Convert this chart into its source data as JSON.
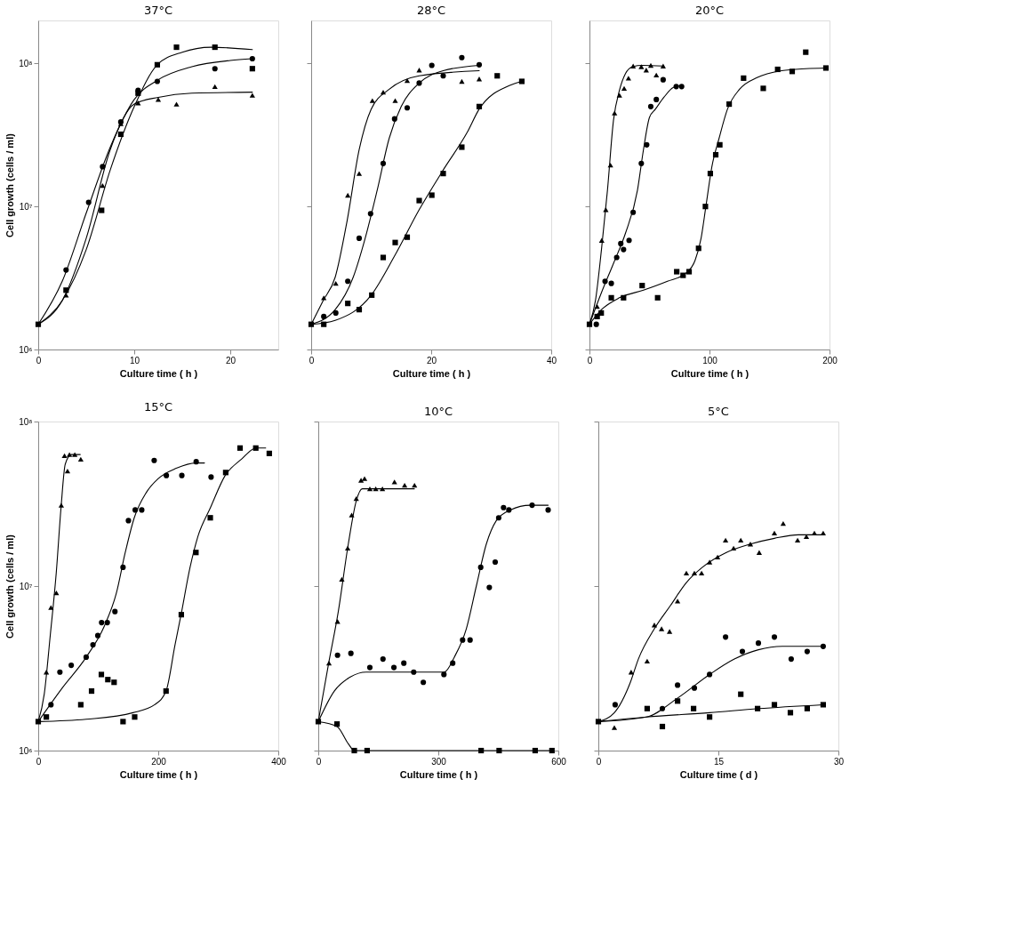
{
  "chart_data": [
    {
      "type": "scatter",
      "title": "37°C",
      "xlabel": "Culture time ( h )",
      "ylabel": "Cell growth  (cells / ml)",
      "log": true,
      "xlim": [
        0,
        25
      ],
      "xticks": [
        0,
        10,
        20
      ],
      "ylim": [
        1000000.0,
        200000000.0
      ],
      "yticks": [
        {
          "value": 1000000.0,
          "label": "10⁶"
        },
        {
          "value": 10000000.0,
          "label": "10⁷"
        },
        {
          "value": 100000000.0,
          "label": "10⁸"
        }
      ],
      "series": [
        {
          "type": "scatter",
          "marker": "square",
          "color": "#000000",
          "x": [
            0,
            2.9,
            6.6,
            8.6,
            10.4,
            12.4,
            14.4,
            18.4,
            22.3
          ],
          "values": [
            1500000.0,
            2600000.0,
            9400000.0,
            32000000.0,
            62000000.0,
            98000000.0,
            130000000.0,
            130000000.0,
            92000000.0
          ]
        },
        {
          "type": "scatter",
          "marker": "circle",
          "color": "#000000",
          "x": [
            2.9,
            5.25,
            6.7,
            8.6,
            10.4,
            12.4,
            18.4,
            22.3
          ],
          "values": [
            3600000.0,
            10700000.0,
            19000000.0,
            39000000.0,
            65000000.0,
            75000000.0,
            92000000.0,
            108000000.0
          ]
        },
        {
          "type": "scatter",
          "marker": "triangle",
          "color": "#000000",
          "x": [
            2.9,
            6.7,
            8.6,
            10.4,
            12.5,
            14.4,
            18.4,
            22.3
          ],
          "values": [
            2400000.0,
            14000000.0,
            38000000.0,
            53000000.0,
            56000000.0,
            52000000.0,
            69000000.0,
            60000000.0
          ]
        },
        {
          "type": "line",
          "marker": "none",
          "color": "#000000",
          "x": [
            0,
            2.5,
            5,
            7.5,
            10,
            12.4,
            15,
            18,
            22.3
          ],
          "values": [
            1500000.0,
            2200000.0,
            5000000.0,
            18000000.0,
            50000000.0,
            98000000.0,
            120000000.0,
            130000000.0,
            125000000.0
          ]
        },
        {
          "type": "line",
          "marker": "none",
          "color": "#000000",
          "x": [
            0,
            2.5,
            5,
            7.5,
            10,
            12.5,
            16,
            20,
            22.3
          ],
          "values": [
            1500000.0,
            3000000.0,
            9000000.0,
            26000000.0,
            56000000.0,
            77000000.0,
            95000000.0,
            105000000.0,
            108000000.0
          ]
        },
        {
          "type": "line",
          "marker": "none",
          "color": "#000000",
          "x": [
            0,
            2.5,
            5,
            7.5,
            10,
            12.5,
            16,
            22.3
          ],
          "values": [
            1500000.0,
            2200000.0,
            6000000.0,
            25000000.0,
            52000000.0,
            58000000.0,
            62000000.0,
            63000000.0
          ]
        }
      ]
    },
    {
      "type": "scatter",
      "title": "28°C",
      "xlabel": "Culture time ( h )",
      "log": true,
      "tick_labels": "x",
      "xlim": [
        0,
        40
      ],
      "xticks": [
        0,
        20,
        40
      ],
      "ylim": [
        1000000.0,
        200000000.0
      ],
      "yticks": [
        {
          "value": 1000000.0,
          "label": null
        },
        {
          "value": 10000000.0,
          "label": null
        },
        {
          "value": 100000000.0,
          "label": null
        }
      ],
      "series": [
        {
          "type": "scatter",
          "marker": "triangle",
          "color": "#000000",
          "x": [
            2.1,
            4.1,
            6.1,
            8.0,
            10.2,
            12.0,
            14.0,
            16.0,
            18.0,
            20.1,
            25.1,
            28.0
          ],
          "values": [
            2300000.0,
            2900000.0,
            12000000.0,
            17000000.0,
            55000000.0,
            63000000.0,
            55000000.0,
            76000000.0,
            90000000.0,
            null,
            75000000.0,
            78000000.0
          ]
        },
        {
          "type": "scatter",
          "marker": "circle",
          "color": "#000000",
          "x": [
            2.1,
            4.1,
            6.1,
            8.0,
            9.9,
            12.0,
            13.9,
            16.0,
            18.0,
            20.1,
            22.0,
            25.1,
            28.0
          ],
          "values": [
            1700000.0,
            1800000.0,
            3000000.0,
            6000000.0,
            8900000.0,
            20000000.0,
            41000000.0,
            49000000.0,
            73000000.0,
            97000000.0,
            82000000.0,
            110000000.0,
            98000000.0
          ]
        },
        {
          "type": "scatter",
          "marker": "square",
          "color": "#000000",
          "x": [
            0,
            2.1,
            6.1,
            8.0,
            10.1,
            12.0,
            14.0,
            16.0,
            18.0,
            20.1,
            22.0,
            25.1,
            28.0,
            31.0,
            35.1
          ],
          "values": [
            1500000.0,
            1500000.0,
            2100000.0,
            1900000.0,
            2400000.0,
            4400000.0,
            5600000.0,
            6100000.0,
            11000000.0,
            12000000.0,
            17000000.0,
            26000000.0,
            50000000.0,
            82000000.0,
            75000000.0
          ]
        },
        {
          "type": "line",
          "marker": "none",
          "color": "#000000",
          "x": [
            0,
            2,
            4,
            6,
            8,
            10,
            13,
            18,
            28
          ],
          "values": [
            1500000.0,
            2200000.0,
            3200000.0,
            8000000.0,
            25000000.0,
            48000000.0,
            66000000.0,
            82000000.0,
            89000000.0
          ]
        },
        {
          "type": "line",
          "marker": "none",
          "color": "#000000",
          "x": [
            0,
            4,
            7,
            9,
            11,
            13,
            15,
            18,
            22,
            28
          ],
          "values": [
            1500000.0,
            1900000.0,
            3200000.0,
            6000000.0,
            13000000.0,
            30000000.0,
            50000000.0,
            73000000.0,
            89000000.0,
            97000000.0
          ]
        },
        {
          "type": "line",
          "marker": "none",
          "color": "#000000",
          "x": [
            0,
            4,
            10,
            14,
            18,
            22,
            26,
            28,
            33,
            35.1
          ],
          "values": [
            1500000.0,
            1600000.0,
            2400000.0,
            4600000.0,
            9500000.0,
            18000000.0,
            33000000.0,
            48000000.0,
            70000000.0,
            75000000.0
          ]
        }
      ]
    },
    {
      "type": "scatter",
      "title": "20°C",
      "xlabel": "Culture time ( h )",
      "log": true,
      "tick_labels": "x",
      "xlim": [
        0,
        200
      ],
      "xticks": [
        0,
        100,
        200
      ],
      "ylim": [
        1000000.0,
        200000000.0
      ],
      "yticks": [
        {
          "value": 1000000.0,
          "label": null
        },
        {
          "value": 10000000.0,
          "label": null
        },
        {
          "value": 100000000.0,
          "label": null
        }
      ],
      "series": [
        {
          "type": "scatter",
          "marker": "triangle",
          "color": "#000000",
          "x": [
            6.4,
            10.2,
            13.6,
            17.5,
            20.9,
            25,
            28.9,
            32.5,
            36.4,
            43.2,
            47.3,
            51.1,
            55.7,
            61.4
          ],
          "values": [
            2000000.0,
            5800000.0,
            9500000.0,
            19500000.0,
            45000000.0,
            60000000.0,
            67000000.0,
            79000000.0,
            96000000.0,
            95000000.0,
            90000000.0,
            97000000.0,
            83000000.0,
            96000000.0
          ]
        },
        {
          "type": "scatter",
          "marker": "circle",
          "color": "#000000",
          "x": [
            5.7,
            13,
            18.2,
            22.7,
            26.1,
            28.4,
            33,
            36.4,
            43.2,
            47.7,
            51.1,
            55.7,
            61.4,
            72.3,
            76.8
          ],
          "values": [
            1500000.0,
            3000000.0,
            2900000.0,
            4400000.0,
            5500000.0,
            5000000.0,
            5800000.0,
            9100000.0,
            20000000.0,
            27000000.0,
            50000000.0,
            56000000.0,
            77000000.0,
            69000000.0,
            69000000.0
          ]
        },
        {
          "type": "scatter",
          "marker": "square",
          "color": "#000000",
          "x": [
            0,
            6.4,
            9.8,
            18.2,
            28.4,
            43.9,
            56.8,
            72.7,
            78,
            83,
            90.9,
            96.6,
            100.7,
            105.2,
            108.6,
            116.4,
            128.4,
            144.8,
            156.8,
            168.9,
            180.2,
            197
          ],
          "values": [
            1500000.0,
            1700000.0,
            1800000.0,
            2300000.0,
            2300000.0,
            2800000.0,
            2300000.0,
            3500000.0,
            3300000.0,
            3500000.0,
            5100000.0,
            10000000.0,
            17000000.0,
            23000000.0,
            27000000.0,
            52000000.0,
            79000000.0,
            67000000.0,
            91000000.0,
            88000000.0,
            120000000.0,
            93000000.0
          ]
        },
        {
          "type": "line",
          "marker": "none",
          "color": "#000000",
          "x": [
            0,
            5,
            10,
            15,
            20,
            25,
            30,
            36,
            44,
            61.4
          ],
          "values": [
            1500000.0,
            2200000.0,
            5000000.0,
            13000000.0,
            40000000.0,
            65000000.0,
            85000000.0,
            95000000.0,
            97000000.0,
            96000000.0
          ]
        },
        {
          "type": "line",
          "marker": "none",
          "color": "#000000",
          "x": [
            0,
            10,
            20,
            30,
            40,
            45,
            50,
            55,
            62,
            70,
            76.8
          ],
          "values": [
            1500000.0,
            2500000.0,
            4000000.0,
            6500000.0,
            13000000.0,
            25000000.0,
            42000000.0,
            48000000.0,
            58000000.0,
            68000000.0,
            70000000.0
          ]
        },
        {
          "type": "line",
          "marker": "none",
          "color": "#000000",
          "x": [
            0,
            10,
            25,
            45,
            65,
            80,
            88,
            93,
            97,
            102,
            108,
            115,
            125,
            140,
            160,
            180,
            197
          ],
          "values": [
            1500000.0,
            1900000.0,
            2300000.0,
            2600000.0,
            3000000.0,
            3400000.0,
            4200000.0,
            6000000.0,
            10000000.0,
            19000000.0,
            30000000.0,
            48000000.0,
            66000000.0,
            80000000.0,
            89000000.0,
            92000000.0,
            93000000.0
          ]
        }
      ]
    },
    {
      "type": "scatter",
      "title": "15°C",
      "xlabel": "Culture time ( h )",
      "ylabel": "Cell growth  (cells / ml)",
      "log": true,
      "xlim": [
        0,
        400
      ],
      "xticks": [
        0,
        200,
        400
      ],
      "ylim": [
        1000000.0,
        100000000.0
      ],
      "yticks": [
        {
          "value": 1000000.0,
          "label": "10⁶"
        },
        {
          "value": 10000000.0,
          "label": "10⁷"
        },
        {
          "value": 100000000.0,
          "label": "10⁸"
        }
      ],
      "series": [
        {
          "type": "scatter",
          "marker": "triangle",
          "color": "#000000",
          "x": [
            13.5,
            21.2,
            30.2,
            38.4,
            43.8,
            48.8,
            52,
            60.9,
            70.9
          ],
          "values": [
            3000000.0,
            7400000.0,
            9100000.0,
            31000000.0,
            62000000.0,
            50000000.0,
            63000000.0,
            63000000.0,
            59000000.0
          ]
        },
        {
          "type": "scatter",
          "marker": "circle",
          "color": "#000000",
          "x": [
            21.2,
            36.1,
            55,
            79.9,
            91.2,
            99.3,
            105.6,
            115.1,
            127.8,
            141.3,
            150.3,
            161.6,
            172.5,
            193.2,
            213.5,
            239.3,
            263.2,
            288
          ],
          "values": [
            1900000.0,
            3000000.0,
            3300000.0,
            3700000.0,
            4400000.0,
            5000000.0,
            6000000.0,
            6000000.0,
            7000000.0,
            13000000.0,
            25000000.0,
            29000000.0,
            29000000.0,
            58000000.0,
            47000000.0,
            47000000.0,
            57000000.0,
            46000000.0
          ]
        },
        {
          "type": "scatter",
          "marker": "square",
          "color": "#000000",
          "x": [
            0,
            13.5,
            70.9,
            88.9,
            105.2,
            116,
            126.4,
            141.3,
            160.7,
            213,
            238.4,
            262.8,
            286.7,
            312.4,
            336.3,
            362.5,
            385
          ],
          "values": [
            1500000.0,
            1600000.0,
            1900000.0,
            2300000.0,
            2900000.0,
            2700000.0,
            2600000.0,
            1500000.0,
            1600000.0,
            2300000.0,
            6700000.0,
            16000000.0,
            26000000.0,
            49000000.0,
            69000000.0,
            69000000.0,
            64000000.0
          ]
        },
        {
          "type": "line",
          "marker": "none",
          "color": "#000000",
          "x": [
            0,
            10,
            20,
            30,
            38,
            45,
            55,
            70
          ],
          "values": [
            1500000.0,
            2200000.0,
            5000000.0,
            12000000.0,
            30000000.0,
            55000000.0,
            63000000.0,
            63000000.0
          ]
        },
        {
          "type": "line",
          "marker": "none",
          "color": "#000000",
          "x": [
            0,
            40,
            80,
            110,
            130,
            145,
            160,
            180,
            200,
            230,
            263,
            277
          ],
          "values": [
            1500000.0,
            2400000.0,
            3700000.0,
            5700000.0,
            9000000.0,
            16000000.0,
            26000000.0,
            37000000.0,
            45000000.0,
            52000000.0,
            56000000.0,
            56000000.0
          ]
        },
        {
          "type": "line",
          "marker": "none",
          "color": "#000000",
          "x": [
            0,
            80,
            158,
            194,
            213,
            228,
            238,
            253,
            266,
            287,
            311.5,
            338.6,
            363,
            379
          ],
          "values": [
            1500000.0,
            1550000.0,
            1700000.0,
            1900000.0,
            2300000.0,
            4400000.0,
            6700000.0,
            13000000.0,
            20000000.0,
            30000000.0,
            47000000.0,
            59000000.0,
            69000000.0,
            69000000.0
          ]
        }
      ]
    },
    {
      "type": "scatter",
      "title": "10°C",
      "xlabel": "Culture time ( h )",
      "log": true,
      "tick_labels": "x",
      "xlim": [
        0,
        600
      ],
      "xticks": [
        0,
        300,
        600
      ],
      "ylim": [
        1000000.0,
        100000000.0
      ],
      "yticks": [
        {
          "value": 1000000.0,
          "label": null
        },
        {
          "value": 10000000.0,
          "label": null
        },
        {
          "value": 100000000.0,
          "label": null
        }
      ],
      "series": [
        {
          "type": "scatter",
          "marker": "triangle",
          "color": "#000000",
          "x": [
            26.7,
            48.1,
            58.8,
            73.5,
            83.5,
            94.9,
            106.9,
            115.6,
            128.9,
            143.6,
            160.3,
            190.4,
            215.8,
            240.5
          ],
          "values": [
            3400000.0,
            6100000.0,
            11000000.0,
            17000000.0,
            27000000.0,
            34000000.0,
            44000000.0,
            45000000.0,
            39000000.0,
            39000000.0,
            39000000.0,
            43000000.0,
            41000000.0,
            41000000.0
          ]
        },
        {
          "type": "scatter",
          "marker": "circle",
          "color": "#000000",
          "x": [
            48.1,
            81.5,
            128.9,
            161.7,
            189,
            213.8,
            238.5,
            262.5,
            314,
            336,
            360.7,
            379.4,
            406,
            427.5,
            442.2,
            450.9,
            463,
            476.3,
            534.4,
            574.5
          ],
          "values": [
            3800000.0,
            3900000.0,
            3200000.0,
            3600000.0,
            3200000.0,
            3400000.0,
            3000000.0,
            2600000.0,
            2900000.0,
            3400000.0,
            4700000.0,
            4700000.0,
            13000000.0,
            9800000.0,
            14000000.0,
            26000000.0,
            30000000.0,
            29000000.0,
            31000000.0,
            29000000.0
          ]
        },
        {
          "type": "scatter",
          "marker": "square",
          "color": "#000000",
          "x": [
            0,
            46.8,
            90,
            122,
            407,
            452,
            542,
            584
          ],
          "values": [
            1500000.0,
            1450000.0,
            1000000.0,
            1000000.0,
            1000000.0,
            1000000.0,
            1000000.0,
            1000000.0
          ]
        },
        {
          "type": "line",
          "marker": "none",
          "color": "#000000",
          "x": [
            0,
            25,
            50,
            75,
            95,
            110,
            130,
            160,
            240
          ],
          "values": [
            1500000.0,
            3300000.0,
            7000000.0,
            18000000.0,
            33000000.0,
            39000000.0,
            39000000.0,
            39000000.0,
            39000000.0
          ]
        },
        {
          "type": "line",
          "marker": "none",
          "color": "#000000",
          "x": [
            0,
            40,
            80,
            120,
            200,
            280,
            315,
            340,
            370,
            395,
            420,
            445,
            480,
            530,
            574.5
          ],
          "values": [
            1500000.0,
            2300000.0,
            2800000.0,
            3000000.0,
            3000000.0,
            3000000.0,
            3000000.0,
            3700000.0,
            5500000.0,
            10000000.0,
            18000000.0,
            25000000.0,
            29000000.0,
            31000000.0,
            31000000.0
          ]
        },
        {
          "type": "line",
          "marker": "none",
          "color": "#000000",
          "x": [
            0,
            47,
            75,
            90,
            584
          ],
          "values": [
            1500000.0,
            1400000.0,
            1100000.0,
            1000000.0,
            1000000.0
          ]
        }
      ]
    },
    {
      "type": "scatter",
      "title": "5°C",
      "xlabel": "Culture time ( d )",
      "log": true,
      "tick_labels": "x",
      "xlim": [
        0,
        30
      ],
      "xticks": [
        0,
        15,
        30
      ],
      "ylim": [
        1000000.0,
        100000000.0
      ],
      "yticks": [
        {
          "value": 1000000.0,
          "label": null
        },
        {
          "value": 10000000.0,
          "label": null
        },
        {
          "value": 100000000.0,
          "label": null
        }
      ],
      "series": [
        {
          "type": "scatter",
          "marker": "triangle",
          "color": "#000000",
          "x": [
            2.0,
            4.1,
            6.1,
            7.0,
            7.9,
            8.9,
            9.9,
            11.0,
            12.0,
            12.9,
            13.9,
            14.9,
            15.9,
            16.9,
            17.8,
            19.0,
            20.1,
            22.0,
            23.1,
            24.9,
            26.0,
            27.0,
            28.1
          ],
          "values": [
            1380000.0,
            3000000.0,
            3500000.0,
            5800000.0,
            5500000.0,
            5300000.0,
            8100000.0,
            12000000.0,
            12000000.0,
            12000000.0,
            14000000.0,
            15000000.0,
            19000000.0,
            17000000.0,
            19000000.0,
            18000000.0,
            16000000.0,
            21000000.0,
            24000000.0,
            19000000.0,
            20000000.0,
            21000000.0,
            21000000.0
          ]
        },
        {
          "type": "scatter",
          "marker": "circle",
          "color": "#000000",
          "x": [
            2.1,
            8.0,
            9.9,
            12.0,
            13.9,
            15.9,
            18.0,
            20.0,
            22.0,
            24.1,
            26.1,
            28.1
          ],
          "values": [
            1900000.0,
            1800000.0,
            2500000.0,
            2400000.0,
            2900000.0,
            4900000.0,
            4000000.0,
            4500000.0,
            4900000.0,
            3600000.0,
            4000000.0,
            4300000.0
          ]
        },
        {
          "type": "scatter",
          "marker": "square",
          "color": "#000000",
          "x": [
            0,
            6.1,
            8.0,
            9.9,
            11.9,
            13.9,
            17.8,
            19.9,
            22.0,
            24.0,
            26.1,
            28.1
          ],
          "values": [
            1500000.0,
            1800000.0,
            1400000.0,
            2000000.0,
            1800000.0,
            1600000.0,
            2200000.0,
            1800000.0,
            1900000.0,
            1700000.0,
            1800000.0,
            1900000.0
          ]
        },
        {
          "type": "line",
          "marker": "none",
          "color": "#000000",
          "x": [
            0,
            2,
            4,
            5,
            7,
            9,
            11,
            13,
            16,
            19,
            22,
            25,
            28.1
          ],
          "values": [
            1500000.0,
            1700000.0,
            2600000.0,
            3600000.0,
            5500000.0,
            7600000.0,
            10500000.0,
            13000000.0,
            16000000.0,
            18000000.0,
            19500000.0,
            20500000.0,
            20500000.0
          ]
        },
        {
          "type": "line",
          "marker": "none",
          "color": "#000000",
          "x": [
            0,
            6,
            10,
            13.9,
            17,
            20,
            23,
            28.1
          ],
          "values": [
            1500000.0,
            1600000.0,
            2100000.0,
            2900000.0,
            3600000.0,
            4100000.0,
            4300000.0,
            4300000.0
          ]
        },
        {
          "type": "line",
          "marker": "none",
          "color": "#000000",
          "x": [
            0,
            6,
            13.9,
            20,
            28.1
          ],
          "values": [
            1500000.0,
            1600000.0,
            1700000.0,
            1800000.0,
            1900000.0
          ]
        }
      ]
    }
  ]
}
